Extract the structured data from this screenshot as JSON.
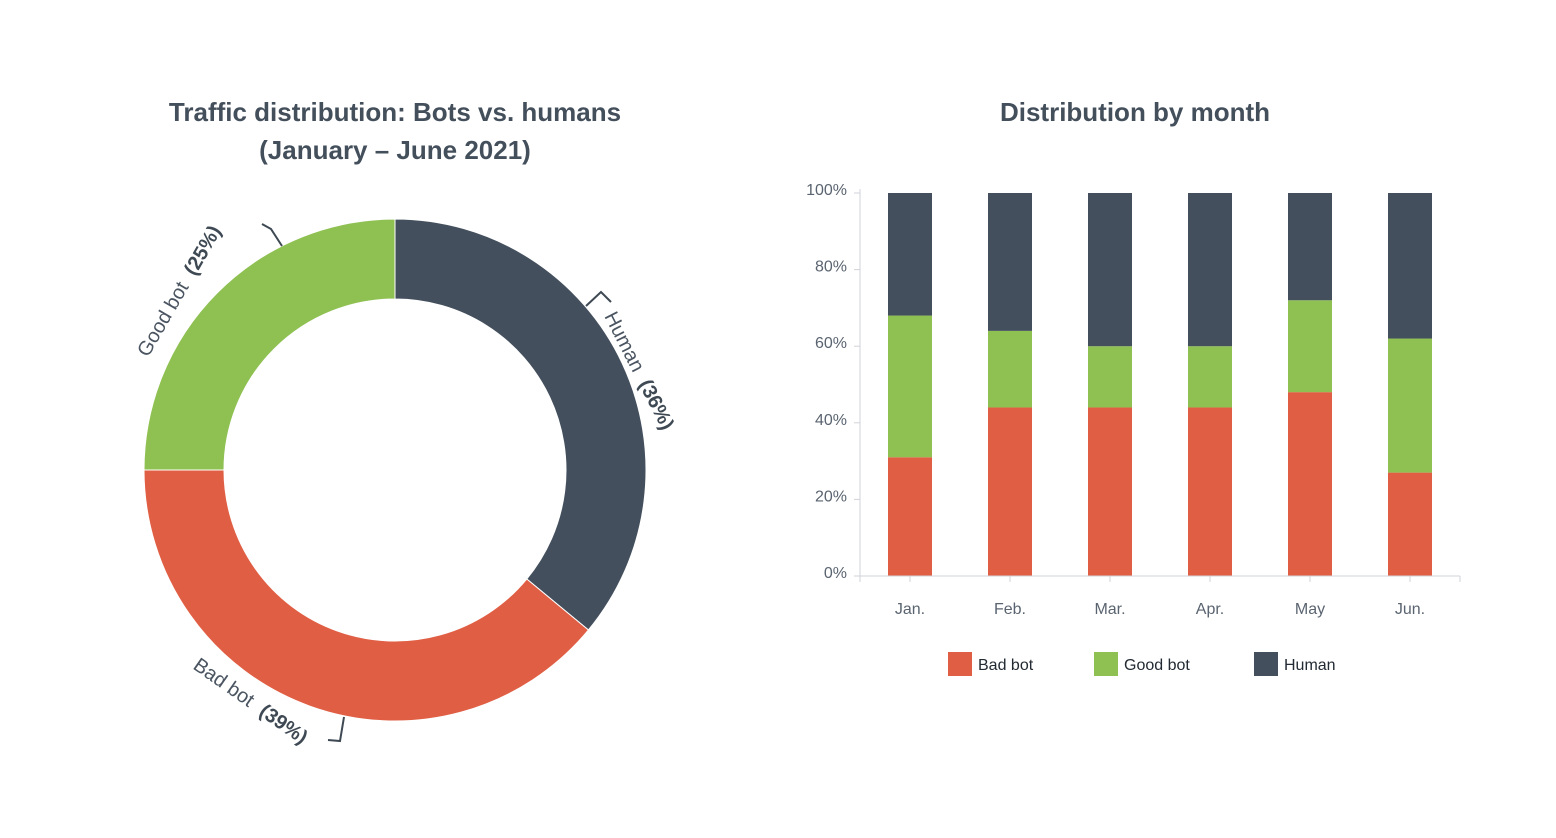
{
  "chart_data": [
    {
      "type": "pie",
      "title_line1": "Traffic distribution: Bots vs. humans",
      "title_line2": "(January – June 2021)",
      "slices": [
        {
          "key": "human",
          "label": "Human",
          "pct_label": "(36%)",
          "value": 36,
          "color": "#434f5d"
        },
        {
          "key": "badbot",
          "label": "Bad bot",
          "pct_label": "(39%)",
          "value": 39,
          "color": "#e05e43"
        },
        {
          "key": "goodbot",
          "label": "Good bot",
          "pct_label": "(25%)",
          "value": 25,
          "color": "#8fc052"
        }
      ]
    },
    {
      "type": "bar",
      "stacked": true,
      "title": "Distribution by month",
      "categories": [
        "Jan.",
        "Feb.",
        "Mar.",
        "Apr.",
        "May",
        "Jun."
      ],
      "ylim": [
        0,
        100
      ],
      "yticks": [
        "0%",
        "20%",
        "40%",
        "60%",
        "80%",
        "100%"
      ],
      "ytick_values": [
        0,
        20,
        40,
        60,
        80,
        100
      ],
      "series": [
        {
          "name": "Bad bot",
          "color": "#e05e43",
          "values": [
            31,
            44,
            44,
            44,
            48,
            27
          ]
        },
        {
          "name": "Good bot",
          "color": "#8fc052",
          "values": [
            37,
            20,
            16,
            16,
            24,
            35
          ]
        },
        {
          "name": "Human",
          "color": "#434f5d",
          "values": [
            32,
            36,
            40,
            40,
            28,
            38
          ]
        }
      ]
    }
  ]
}
